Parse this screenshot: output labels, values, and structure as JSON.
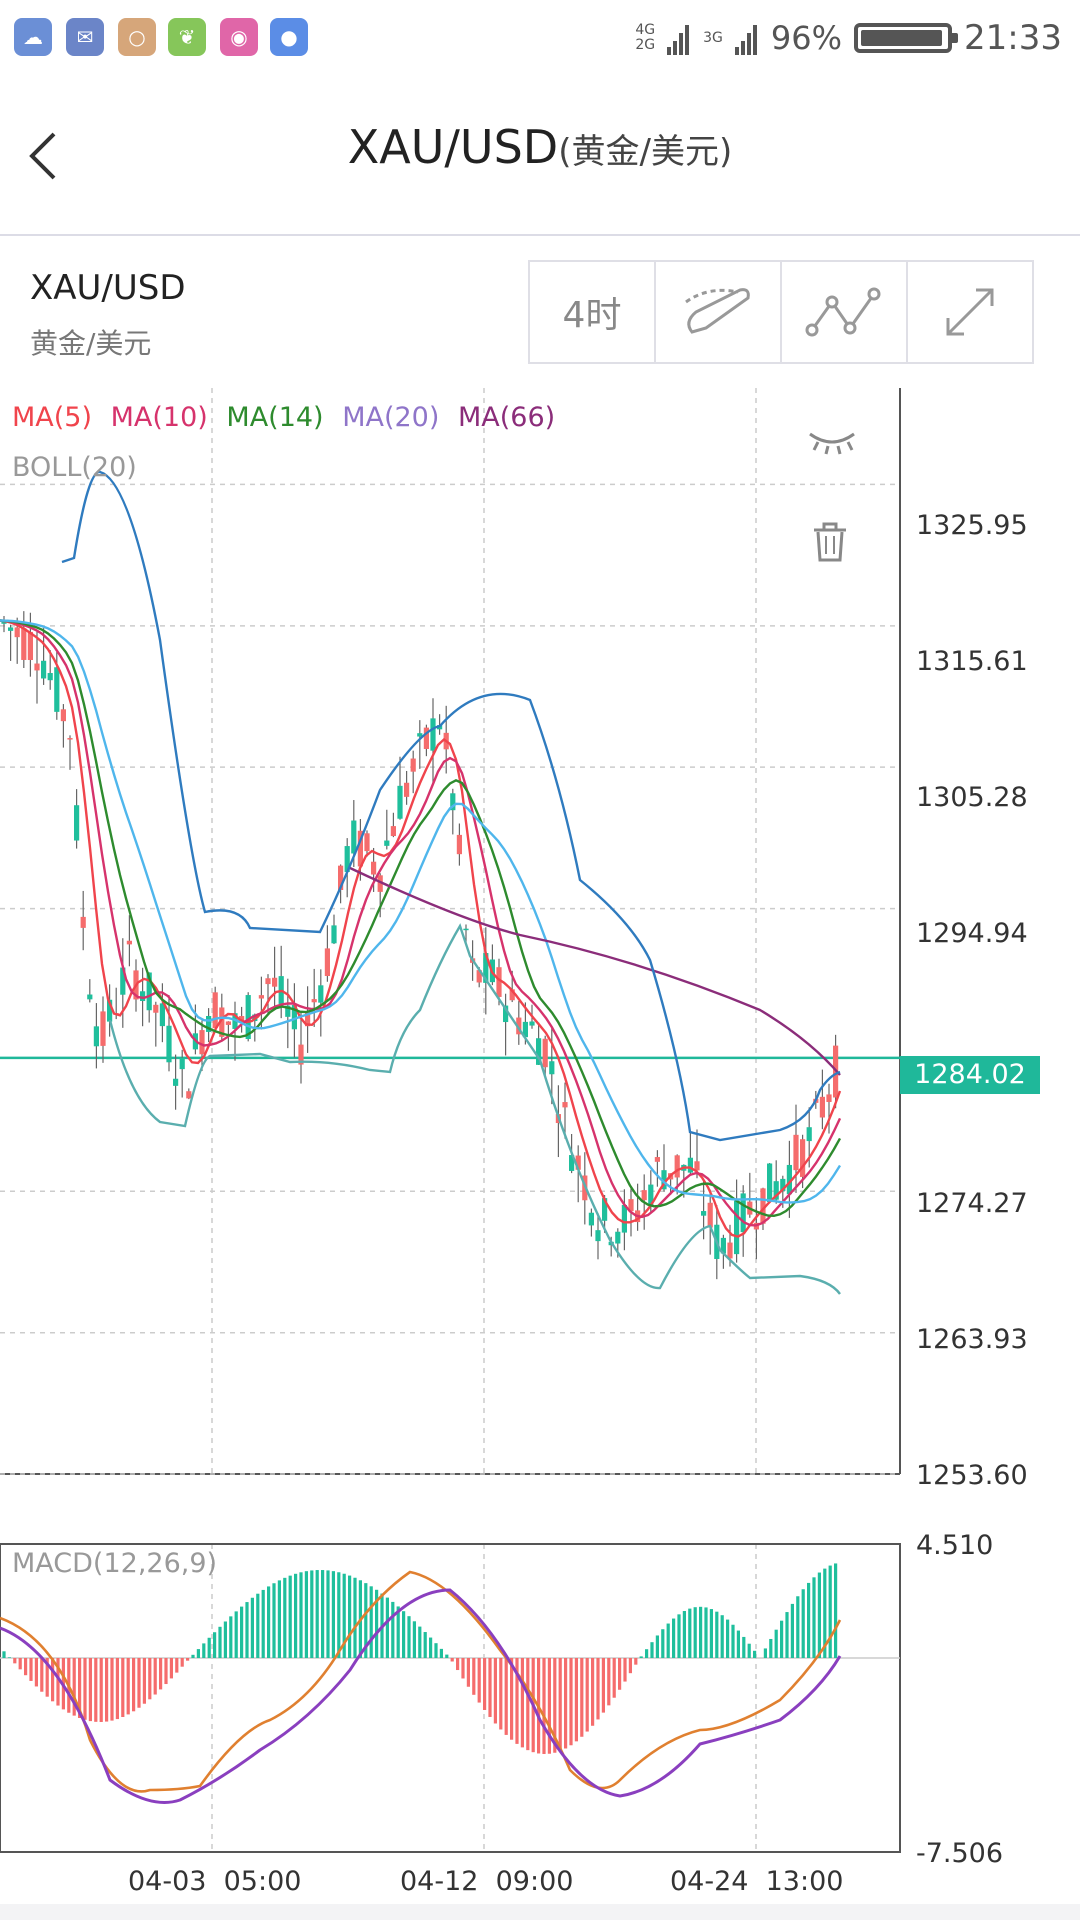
{
  "status_bar": {
    "network_1": "4G\n2G",
    "network_2": "3G",
    "battery_pct": "96%",
    "battery_level": 0.96,
    "time": "21:33",
    "app_icons": [
      "weather-app-icon",
      "mail-app-icon",
      "search-app-icon",
      "leaf-app-icon",
      "camera-app-icon",
      "browser-app-icon"
    ]
  },
  "header": {
    "title": "XAU/USD",
    "subtitle": "(黄金/美元)"
  },
  "instrument": {
    "symbol": "XAU/USD",
    "name": "黄金/美元"
  },
  "tools": {
    "timeframe": "4时"
  },
  "legend": {
    "ma5": "MA(5)",
    "ma10": "MA(10)",
    "ma14": "MA(14)",
    "ma20": "MA(20)",
    "ma66": "MA(66)",
    "boll": "BOLL(20)",
    "macd": "MACD(12,26,9)"
  },
  "colors": {
    "ma5": "#f0444c",
    "ma10": "#d6336c",
    "ma14": "#2e8b2e",
    "ma20": "#8f75c9",
    "ma66": "#8b2d7a",
    "up": "#1fbf9c",
    "down": "#f56c6c",
    "boll_upper": "#2f7bbf",
    "boll_mid": "#4fb6ec",
    "boll_lower": "#5aaeae",
    "current": "#1fb89a"
  },
  "chart_data": [
    {
      "type": "candlestick",
      "y_ticks": [
        "1325.95",
        "1315.61",
        "1305.28",
        "1294.94",
        "1284.02",
        "1274.27",
        "1263.93",
        "1253.60"
      ],
      "current_price": "1284.02",
      "ylim": [
        1253.6,
        1333.0
      ],
      "x_labels": [
        "04-03  05:00",
        "04-12  09:00",
        "04-24  13:00"
      ],
      "series": [
        {
          "name": "MA(5)",
          "color": "#f0444c"
        },
        {
          "name": "MA(10)",
          "color": "#d6336c"
        },
        {
          "name": "MA(14)",
          "color": "#2e8b2e"
        },
        {
          "name": "MA(20)",
          "color": "#8f75c9"
        },
        {
          "name": "MA(66)",
          "color": "#8b2d7a"
        },
        {
          "name": "BOLL(20)",
          "color": "#999999"
        }
      ]
    },
    {
      "type": "bar",
      "y_ticks": [
        "4.510",
        "-7.506"
      ],
      "ylim": [
        -7.506,
        4.51
      ],
      "series": [
        {
          "name": "MACD(12,26,9)"
        }
      ]
    }
  ]
}
